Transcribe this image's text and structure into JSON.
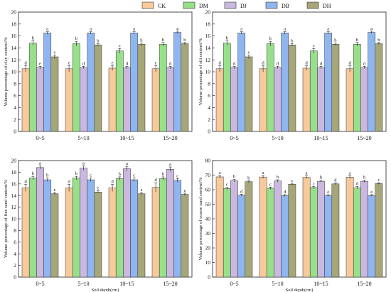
{
  "colors": {
    "CK": "#f7c99b",
    "DM": "#98df8a",
    "DJ": "#cbb8e0",
    "DB": "#8fb6f0",
    "DH": "#a6a679"
  },
  "legend": [
    "CK",
    "DM",
    "DJ",
    "DB",
    "DH"
  ],
  "chart_data": [
    {
      "type": "bar",
      "title": "",
      "xlabel": "",
      "ylabel": "Volume percentage of clay content/%",
      "ylim": [
        0,
        20
      ],
      "yticks": [
        0,
        2,
        4,
        6,
        8,
        10,
        12,
        14,
        16,
        18,
        20
      ],
      "categories": [
        "0~5",
        "5~10",
        "10~15",
        "15~20"
      ],
      "series": [
        {
          "name": "CK",
          "values": [
            10.5,
            10.5,
            10.6,
            10.5
          ],
          "sig": [
            "d",
            "e",
            "e",
            "e"
          ],
          "err": [
            0.5,
            0.5,
            0.4,
            0.5
          ]
        },
        {
          "name": "DM",
          "values": [
            14.8,
            14.7,
            13.5,
            14.6
          ],
          "sig": [
            "b",
            "b",
            "c",
            "b"
          ],
          "err": [
            0.4,
            0.4,
            0.4,
            0.3
          ]
        },
        {
          "name": "DJ",
          "values": [
            10.7,
            10.7,
            10.7,
            10.7
          ],
          "sig": [
            "e",
            "d",
            "d",
            "d"
          ],
          "err": [
            0.2,
            0.2,
            0.2,
            0.2
          ]
        },
        {
          "name": "DB",
          "values": [
            16.5,
            16.5,
            16.5,
            16.6
          ],
          "sig": [
            "a",
            "a",
            "a",
            "a"
          ],
          "err": [
            0.2,
            0.2,
            0.2,
            0.2
          ]
        },
        {
          "name": "DH",
          "values": [
            12.5,
            14.5,
            14.6,
            14.7
          ],
          "sig": [
            "c",
            "b",
            "b",
            "b"
          ],
          "err": [
            0.3,
            0.2,
            0.2,
            0.2
          ]
        }
      ]
    },
    {
      "type": "bar",
      "title": "",
      "xlabel": "",
      "ylabel": "Volume percentage of silt content/%",
      "ylim": [
        0,
        20
      ],
      "yticks": [
        0,
        2,
        4,
        6,
        8,
        10,
        12,
        14,
        16,
        18,
        20
      ],
      "categories": [
        "0~5",
        "5~10",
        "10~15",
        "15~20"
      ],
      "series": [
        {
          "name": "CK",
          "values": [
            10.5,
            10.5,
            10.6,
            10.5
          ],
          "sig": [
            "d",
            "d",
            "d",
            "d"
          ],
          "err": [
            0.5,
            0.5,
            0.4,
            0.5
          ]
        },
        {
          "name": "DM",
          "values": [
            14.8,
            14.7,
            13.5,
            14.6
          ],
          "sig": [
            "b",
            "b",
            "c",
            "b"
          ],
          "err": [
            0.4,
            0.4,
            0.4,
            0.3
          ]
        },
        {
          "name": "DJ",
          "values": [
            10.7,
            10.7,
            10.7,
            10.7
          ],
          "sig": [
            "d",
            "d",
            "d",
            "d"
          ],
          "err": [
            0.2,
            0.2,
            0.2,
            0.2
          ]
        },
        {
          "name": "DB",
          "values": [
            16.5,
            16.5,
            16.5,
            16.6
          ],
          "sig": [
            "a",
            "a",
            "a",
            "a"
          ],
          "err": [
            0.2,
            0.2,
            0.2,
            0.2
          ]
        },
        {
          "name": "DH",
          "values": [
            12.5,
            14.5,
            14.6,
            14.7
          ],
          "sig": [
            "c",
            "b",
            "b",
            "b"
          ],
          "err": [
            0.3,
            0.2,
            0.2,
            0.2
          ]
        }
      ]
    },
    {
      "type": "bar",
      "title": "",
      "xlabel": "Soil depth(cm)",
      "ylabel": "Volume percentage of fine sand content/%",
      "ylim": [
        0,
        20
      ],
      "yticks": [
        0,
        2,
        4,
        6,
        8,
        10,
        12,
        14,
        16,
        18,
        20
      ],
      "categories": [
        "0~5",
        "5~10",
        "10~15",
        "15~20"
      ],
      "series": [
        {
          "name": "CK",
          "values": [
            15.3,
            15.3,
            15.3,
            15.4
          ],
          "sig": [
            "d",
            "d",
            "d",
            "d"
          ],
          "err": [
            0.6,
            0.6,
            0.6,
            0.8
          ]
        },
        {
          "name": "DM",
          "values": [
            17.0,
            17.0,
            16.9,
            16.9
          ],
          "sig": [
            "b",
            "b",
            "b",
            "b"
          ],
          "err": [
            0.3,
            0.3,
            0.3,
            0.3
          ]
        },
        {
          "name": "DJ",
          "values": [
            18.8,
            18.7,
            18.6,
            18.5
          ],
          "sig": [
            "a",
            "a",
            "a",
            "a"
          ],
          "err": [
            0.3,
            0.4,
            0.4,
            0.4
          ]
        },
        {
          "name": "DB",
          "values": [
            16.7,
            16.7,
            16.7,
            16.6
          ],
          "sig": [
            "b",
            "c",
            "c",
            "c"
          ],
          "err": [
            0.3,
            0.3,
            0.3,
            0.3
          ]
        },
        {
          "name": "DH",
          "values": [
            14.3,
            14.6,
            14.3,
            14.2
          ],
          "sig": [
            "e",
            "e",
            "e",
            "e"
          ],
          "err": [
            0.2,
            0.2,
            0.2,
            0.2
          ]
        }
      ]
    },
    {
      "type": "bar",
      "title": "",
      "xlabel": "Soil depth(cm)",
      "ylabel": "Volume percentage of coarse sand content/%",
      "ylim": [
        0,
        80
      ],
      "yticks": [
        0,
        10,
        20,
        30,
        40,
        50,
        60,
        70,
        80
      ],
      "categories": [
        "0~5",
        "5~10",
        "10~15",
        "15~20"
      ],
      "series": [
        {
          "name": "CK",
          "values": [
            68.8,
            68.7,
            68.5,
            68.6
          ],
          "sig": [
            "a",
            "a",
            "a",
            "a"
          ],
          "err": [
            1.0,
            1.0,
            1.0,
            1.0
          ]
        },
        {
          "name": "DM",
          "values": [
            60.8,
            61.0,
            61.5,
            61.3
          ],
          "sig": [
            "c",
            "c",
            "c",
            "d"
          ],
          "err": [
            0.8,
            0.8,
            0.8,
            0.8
          ]
        },
        {
          "name": "DJ",
          "values": [
            66.2,
            66.0,
            65.8,
            65.8
          ],
          "sig": [
            "b",
            "b",
            "b",
            "b"
          ],
          "err": [
            0.8,
            0.8,
            0.8,
            0.8
          ]
        },
        {
          "name": "DB",
          "values": [
            56.2,
            56.0,
            56.0,
            56.0
          ],
          "sig": [
            "d",
            "d",
            "e",
            "e"
          ],
          "err": [
            0.6,
            0.6,
            0.6,
            0.6
          ]
        },
        {
          "name": "DH",
          "values": [
            65.5,
            63.8,
            64.0,
            64.2
          ],
          "sig": [
            "b",
            "c",
            "d",
            "c"
          ],
          "err": [
            0.6,
            0.6,
            0.6,
            0.6
          ]
        }
      ]
    }
  ]
}
